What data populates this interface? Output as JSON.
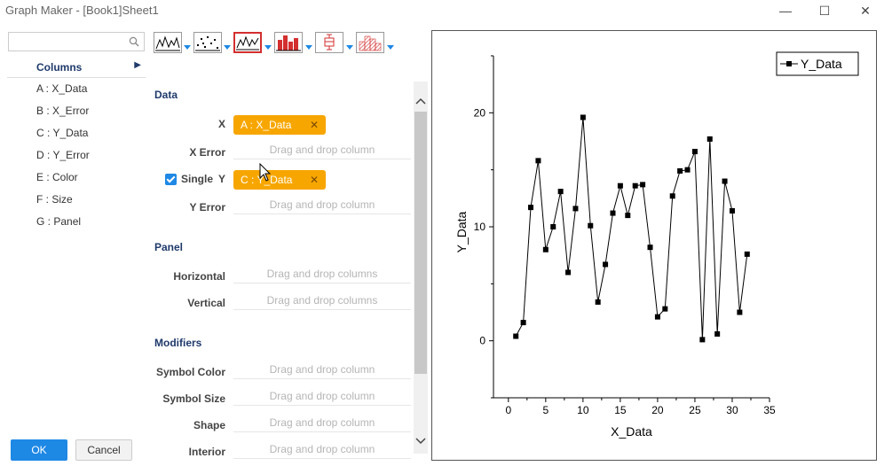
{
  "window": {
    "title": "Graph Maker - [Book1]Sheet1",
    "minimize": "—",
    "maximize": "☐",
    "close": "✕"
  },
  "columns_panel": {
    "header": "Columns",
    "items": [
      {
        "letter": "A",
        "name": "X_Data"
      },
      {
        "letter": "B",
        "name": "X_Error"
      },
      {
        "letter": "C",
        "name": "Y_Data"
      },
      {
        "letter": "D",
        "name": "Y_Error"
      },
      {
        "letter": "E",
        "name": "Color"
      },
      {
        "letter": "F",
        "name": "Size"
      },
      {
        "letter": "G",
        "name": "Panel"
      }
    ],
    "item_labels": [
      "A : X_Data",
      "B : X_Error",
      "C : Y_Data",
      "D : Y_Error",
      "E : Color",
      "F : Size",
      "G : Panel"
    ]
  },
  "toolbar": {
    "graph_types": [
      "line",
      "scatter",
      "line-symbol",
      "column",
      "box",
      "histogram"
    ],
    "selected": "line-symbol"
  },
  "data_section": {
    "title": "Data",
    "x_label": "X",
    "x_value": "A : X_Data",
    "x_error_label": "X Error",
    "single_label": "Single",
    "y_label": "Y",
    "y_value": "C : Y_Data",
    "y_error_label": "Y Error",
    "drop_column": "Drag and drop column"
  },
  "panel_section": {
    "title": "Panel",
    "horizontal_label": "Horizontal",
    "vertical_label": "Vertical",
    "drop_columns": "Drag and drop columns"
  },
  "modifiers_section": {
    "title": "Modifiers",
    "symbol_color_label": "Symbol Color",
    "symbol_size_label": "Symbol Size",
    "shape_label": "Shape",
    "interior_label": "Interior",
    "drop_column": "Drag and drop column"
  },
  "buttons": {
    "ok": "OK",
    "cancel": "Cancel"
  },
  "colors": {
    "accent": "#1e88e5",
    "chip": "#f7a600",
    "selected_border": "#d32f2f"
  },
  "chart_data": {
    "type": "line",
    "marker": "square",
    "xlabel": "X_Data",
    "ylabel": "Y_Data",
    "xlim": [
      -2,
      35
    ],
    "ylim": [
      -5,
      25
    ],
    "xticks": [
      0,
      5,
      10,
      15,
      20,
      25,
      30,
      35
    ],
    "yticks": [
      0,
      10,
      20
    ],
    "legend_position": "top-right",
    "series": [
      {
        "name": "Y_Data",
        "x": [
          1,
          2,
          3,
          4,
          5,
          6,
          7,
          8,
          9,
          10,
          11,
          12,
          13,
          14,
          15,
          16,
          17,
          18,
          19,
          20,
          21,
          22,
          23,
          24,
          25,
          26,
          27,
          28,
          29,
          30,
          31,
          32
        ],
        "y": [
          0.4,
          1.6,
          11.7,
          15.8,
          8.0,
          10.0,
          13.1,
          6.0,
          11.6,
          19.6,
          10.1,
          3.4,
          6.7,
          11.2,
          13.6,
          11.0,
          13.6,
          13.7,
          8.2,
          2.1,
          2.8,
          12.7,
          14.9,
          15.0,
          16.6,
          0.1,
          17.7,
          0.6,
          14.0,
          11.4,
          2.5,
          7.6
        ]
      }
    ]
  }
}
